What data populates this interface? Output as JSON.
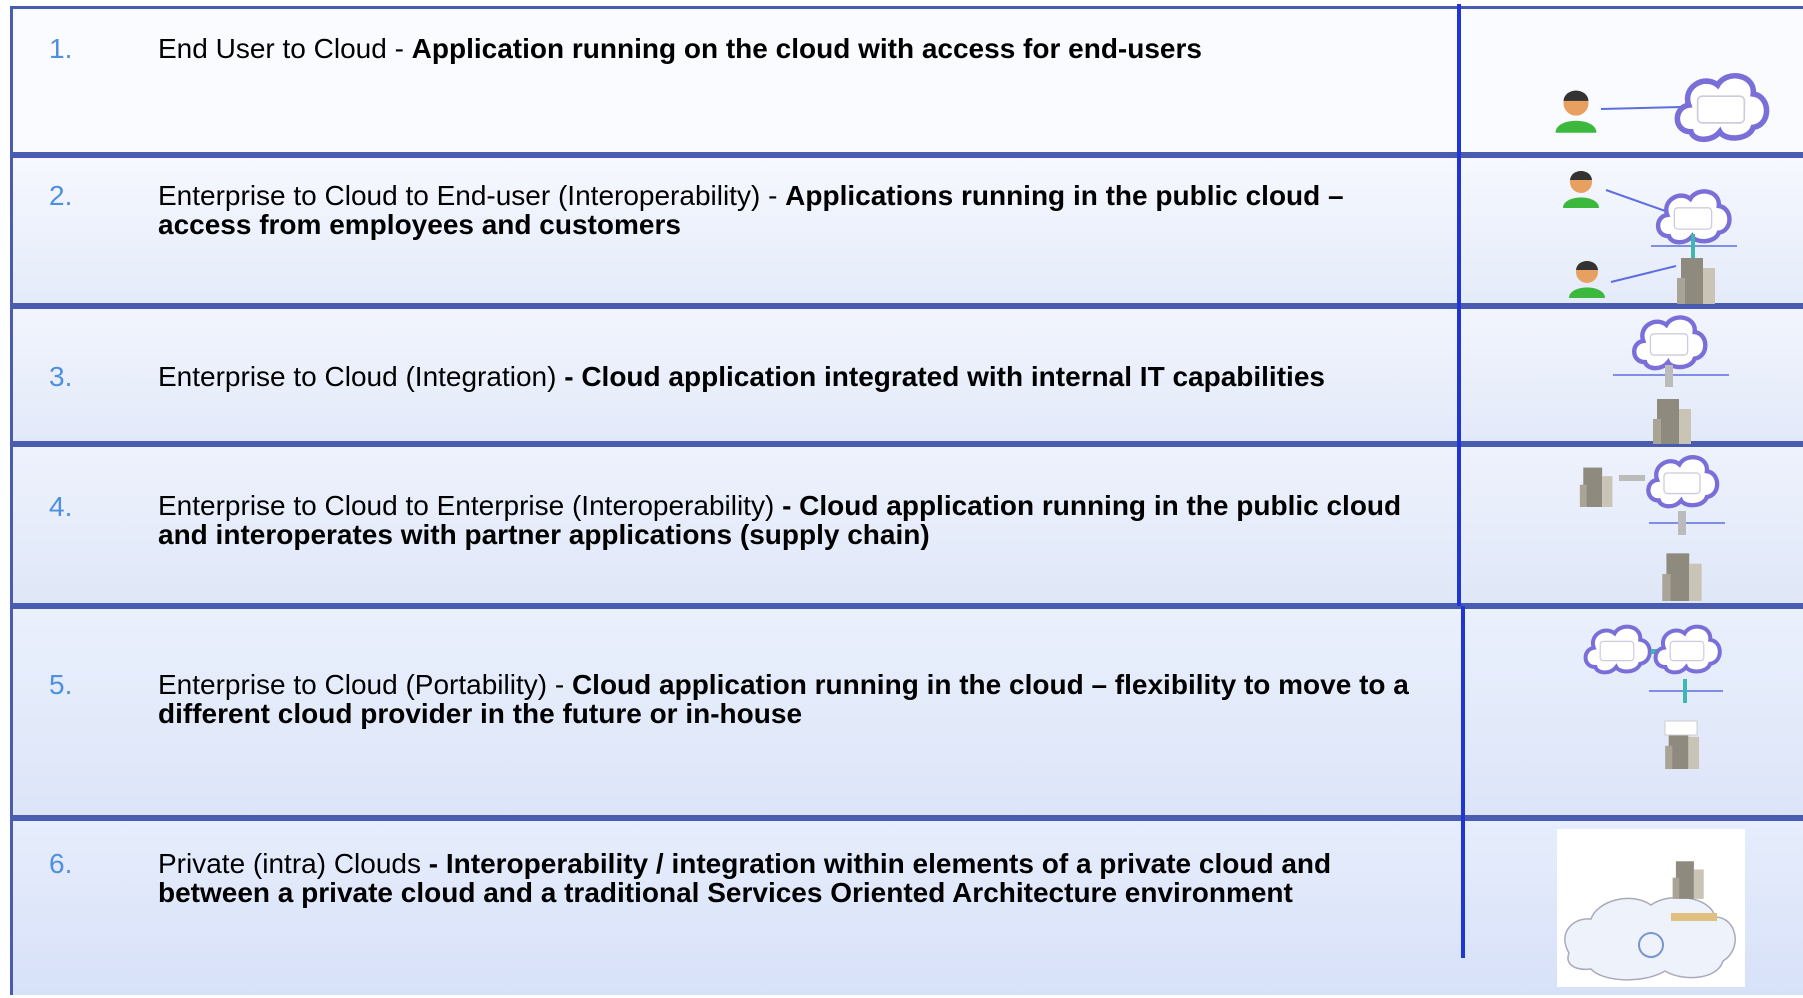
{
  "rows": [
    {
      "number": "1.",
      "lead": "End User to Cloud - ",
      "detail": "Application running on the cloud with access for end-users"
    },
    {
      "number": "2.",
      "lead": "Enterprise to Cloud to End-user (Interoperability) - ",
      "detail": "Applications running in the public cloud – access from employees and customers"
    },
    {
      "number": "3.",
      "lead": "Enterprise to Cloud (Integration) ",
      "detail": "- Cloud application integrated with internal IT capabilities"
    },
    {
      "number": "4.",
      "lead": "Enterprise to Cloud to Enterprise (Interoperability) ",
      "detail": "- Cloud application running in the public cloud and interoperates with partner applications (supply chain)"
    },
    {
      "number": "5.",
      "lead": "Enterprise to Cloud (Portability) - ",
      "detail": "Cloud application running in the cloud – flexibility to move to a different cloud provider in the future or in-house"
    },
    {
      "number": "6.",
      "lead": "Private (intra) Clouds ",
      "detail": "- Interoperability / integration within elements of a private cloud and between a private cloud and a traditional Services Oriented Architecture environment"
    }
  ]
}
